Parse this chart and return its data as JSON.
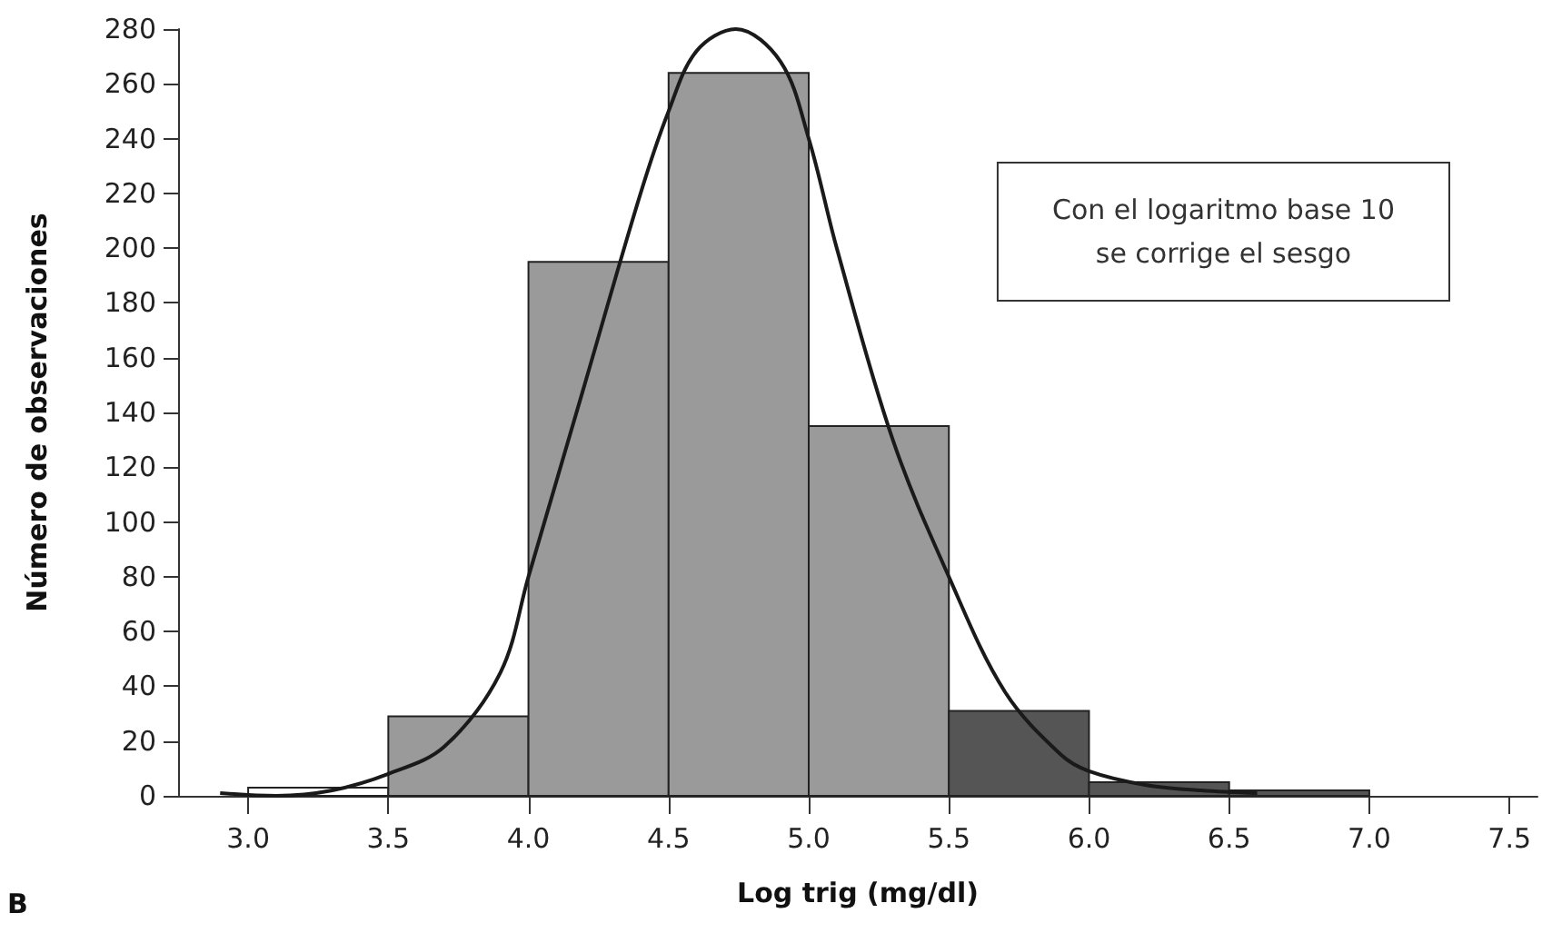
{
  "chart_data": {
    "type": "histogram",
    "xlabel": "Log trig (mg/dl)",
    "ylabel": "Número de observaciones",
    "bins": [
      3.0,
      3.5,
      4.0,
      4.5,
      5.0,
      5.5,
      6.0,
      6.5,
      7.0
    ],
    "values": [
      3,
      29,
      195,
      264,
      135,
      31,
      5,
      2
    ],
    "colors": [
      "#ffffff",
      "#9a9a9a",
      "#9a9a9a",
      "#9a9a9a",
      "#9a9a9a",
      "#555555",
      "#555555",
      "#555555"
    ],
    "series": [
      {
        "type": "line",
        "color": "#1a1a1a",
        "x": [
          2.9,
          3.1,
          3.3,
          3.5,
          3.7,
          3.9,
          4.0,
          4.2,
          4.4,
          4.5,
          4.6,
          4.74,
          4.9,
          5.0,
          5.1,
          5.3,
          5.5,
          5.7,
          5.9,
          6.0,
          6.2,
          6.4,
          6.6
        ],
        "values": [
          1,
          0,
          2,
          8,
          18,
          45,
          80,
          150,
          220,
          250,
          272,
          280,
          268,
          240,
          200,
          130,
          80,
          38,
          15,
          9,
          4,
          2,
          1
        ]
      }
    ],
    "xlim": [
      2.75,
      7.6
    ],
    "xticks": [
      {
        "value": 3,
        "label": "3.0"
      },
      {
        "value": 3.5,
        "label": "3.5"
      },
      {
        "value": 4,
        "label": "4.0"
      },
      {
        "value": 4.5,
        "label": "4.5"
      },
      {
        "value": 5,
        "label": "5.0"
      },
      {
        "value": 5.5,
        "label": "5.5"
      },
      {
        "value": 6,
        "label": "6.0"
      },
      {
        "value": 6.5,
        "label": "6.5"
      },
      {
        "value": 7,
        "label": "7.0"
      },
      {
        "value": 7.5,
        "label": "7.5"
      }
    ],
    "ylim": [
      0,
      280
    ],
    "yticks": [
      0,
      20,
      40,
      60,
      80,
      100,
      120,
      140,
      160,
      180,
      200,
      220,
      240,
      260,
      280
    ],
    "annotations": [
      "Con el logaritmo base 10\nse corrige el sesgo",
      "B"
    ],
    "grid": false,
    "marker": "none",
    "line_style": "solid"
  }
}
